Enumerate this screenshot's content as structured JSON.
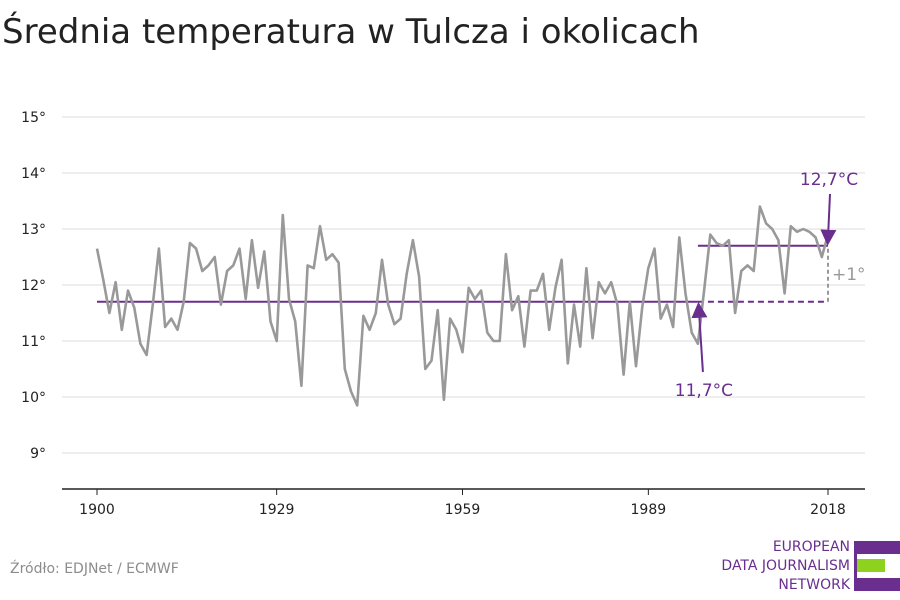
{
  "chart_data": {
    "type": "line",
    "title": "Średnia temperatura w Tulcza i okolicach",
    "xlabel": "",
    "ylabel": "",
    "xlim": [
      1900,
      2018
    ],
    "ylim": [
      8.4,
      15.3
    ],
    "x_ticks": [
      1900,
      1929,
      1959,
      1989,
      2018
    ],
    "y_ticks": [
      {
        "value": 9,
        "label": "9°"
      },
      {
        "value": 10,
        "label": "10°"
      },
      {
        "value": 11,
        "label": "11°"
      },
      {
        "value": 12,
        "label": "12°"
      },
      {
        "value": 13,
        "label": "13°"
      },
      {
        "value": 14,
        "label": "14°"
      },
      {
        "value": 15,
        "label": "15°"
      }
    ],
    "grid": true,
    "x": [
      1900,
      1901,
      1902,
      1903,
      1904,
      1905,
      1906,
      1907,
      1908,
      1909,
      1910,
      1911,
      1912,
      1913,
      1914,
      1915,
      1916,
      1917,
      1918,
      1919,
      1920,
      1921,
      1922,
      1923,
      1924,
      1925,
      1926,
      1927,
      1928,
      1929,
      1930,
      1931,
      1932,
      1933,
      1934,
      1935,
      1936,
      1937,
      1938,
      1939,
      1940,
      1941,
      1942,
      1943,
      1944,
      1945,
      1946,
      1947,
      1948,
      1949,
      1950,
      1951,
      1952,
      1953,
      1954,
      1955,
      1956,
      1957,
      1958,
      1959,
      1960,
      1961,
      1962,
      1963,
      1964,
      1965,
      1966,
      1967,
      1968,
      1969,
      1970,
      1971,
      1972,
      1973,
      1974,
      1975,
      1976,
      1977,
      1978,
      1979,
      1980,
      1981,
      1982,
      1983,
      1984,
      1985,
      1986,
      1987,
      1988,
      1989,
      1990,
      1991,
      1992,
      1993,
      1994,
      1995,
      1996,
      1997,
      1998,
      1999,
      2000,
      2001,
      2002,
      2003,
      2004,
      2005,
      2006,
      2007,
      2008,
      2009,
      2010,
      2011,
      2012,
      2013,
      2014,
      2015,
      2016,
      2017,
      2018
    ],
    "series": [
      {
        "values": [
          12.65,
          12.1,
          11.5,
          12.05,
          11.2,
          11.9,
          11.6,
          10.95,
          10.75,
          11.65,
          12.65,
          11.25,
          11.4,
          11.2,
          11.7,
          12.75,
          12.65,
          12.25,
          12.35,
          12.5,
          11.65,
          12.25,
          12.35,
          12.65,
          11.75,
          12.8,
          11.95,
          12.6,
          11.35,
          11.0,
          13.25,
          11.75,
          11.35,
          10.2,
          12.35,
          12.3,
          13.05,
          12.45,
          12.55,
          12.4,
          10.5,
          10.1,
          9.85,
          11.45,
          11.2,
          11.5,
          12.45,
          11.65,
          11.3,
          11.4,
          12.2,
          12.8,
          12.15,
          10.5,
          10.65,
          11.55,
          9.95,
          11.4,
          11.2,
          10.8,
          11.95,
          11.75,
          11.9,
          11.15,
          11.0,
          11.0,
          12.55,
          11.55,
          11.8,
          10.9,
          11.9,
          11.9,
          12.2,
          11.2,
          11.95,
          12.45,
          10.6,
          11.65,
          10.9,
          12.3,
          11.05,
          12.05,
          11.85,
          12.05,
          11.65,
          10.4,
          11.7,
          10.55,
          11.6,
          12.3,
          12.65,
          11.4,
          11.65,
          11.25,
          12.85,
          11.85,
          11.15,
          10.95,
          11.9,
          12.9,
          12.75,
          12.7,
          12.8,
          11.5,
          12.25,
          12.35,
          12.25,
          13.4,
          13.1,
          13.0,
          12.8,
          11.85,
          13.05,
          12.95,
          13.0,
          12.95,
          12.85,
          12.5,
          12.9
        ]
      }
    ],
    "baseline": {
      "label": "11,7°C",
      "value": 11.7,
      "from": 1900,
      "to": 1997
    },
    "baseline_extension": {
      "from": 1997,
      "to": 2018
    },
    "recent_mean": {
      "label": "12,7°C",
      "value": 12.7,
      "from": 1997,
      "to": 2018
    },
    "difference": {
      "label": "+1°",
      "at": 2018
    },
    "colors": {
      "series": "#999999",
      "accent": "#6a2e8e",
      "grid": "#dddddd",
      "axis": "#222222",
      "diff": "#999999"
    }
  },
  "source": "Źródło: EDJNet / ECMWF",
  "logo": {
    "lines": [
      "EUROPEAN",
      "DATA JOURNALISM",
      "NETWORK"
    ],
    "colors": {
      "purple": "#6a2e8e",
      "green": "#8fd11f"
    }
  }
}
